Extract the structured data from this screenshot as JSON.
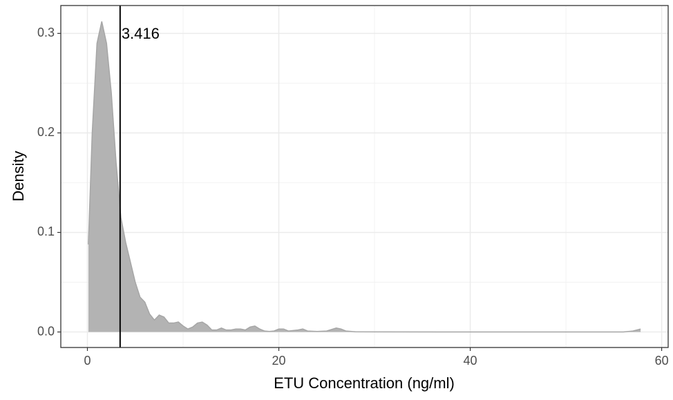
{
  "chart_data": {
    "type": "density",
    "x_label": "ETU Concentration (ng/ml)",
    "y_label": "Density",
    "xlim": [
      -2.78,
      60.68
    ],
    "ylim": [
      -0.0156,
      0.328
    ],
    "xticks": [
      0,
      20,
      40,
      60
    ],
    "yticks": [
      {
        "value": 0,
        "label": "0.0"
      },
      0.1,
      0.2,
      0.3
    ],
    "x_minor_grid": [
      10,
      30,
      50
    ],
    "y_minor_grid": [
      0.05,
      0.15,
      0.25
    ],
    "grid": true,
    "color": "#b3b3b3",
    "x": [
      0.1,
      0.5,
      1.0,
      1.5,
      2.0,
      2.5,
      3.0,
      3.5,
      4.0,
      4.5,
      5.0,
      5.5,
      6.0,
      6.5,
      7.0,
      7.5,
      8.0,
      8.5,
      9.0,
      9.5,
      10.0,
      10.5,
      11.0,
      11.5,
      12.0,
      12.5,
      13.0,
      13.5,
      14.0,
      14.5,
      15.0,
      15.5,
      16.0,
      16.5,
      17.0,
      17.5,
      18.0,
      18.5,
      19.0,
      19.5,
      20.0,
      20.5,
      21.0,
      22.0,
      22.5,
      23.0,
      24.0,
      25.0,
      26.0,
      26.5,
      27.0,
      28.0,
      30.0,
      40.0,
      50.0,
      56.0,
      57.0,
      57.8
    ],
    "values": [
      0.088,
      0.2,
      0.29,
      0.312,
      0.29,
      0.24,
      0.17,
      0.115,
      0.09,
      0.07,
      0.05,
      0.035,
      0.03,
      0.018,
      0.012,
      0.017,
      0.015,
      0.009,
      0.009,
      0.01,
      0.006,
      0.003,
      0.005,
      0.009,
      0.01,
      0.007,
      0.002,
      0.002,
      0.004,
      0.002,
      0.002,
      0.003,
      0.003,
      0.002,
      0.005,
      0.006,
      0.003,
      0.001,
      0.0005,
      0.001,
      0.003,
      0.003,
      0.001,
      0.002,
      0.003,
      0.001,
      0.0005,
      0.001,
      0.004,
      0.003,
      0.001,
      0.0002,
      0.0001,
      0,
      0,
      0,
      0.001,
      0.003
    ],
    "vline": 3.416
  }
}
